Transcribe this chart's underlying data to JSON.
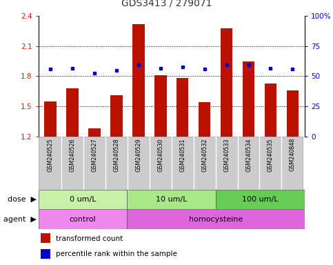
{
  "title": "GDS3413 / 279071",
  "categories": [
    "GSM240525",
    "GSM240526",
    "GSM240527",
    "GSM240528",
    "GSM240529",
    "GSM240530",
    "GSM240531",
    "GSM240532",
    "GSM240533",
    "GSM240534",
    "GSM240535",
    "GSM240848"
  ],
  "bar_values": [
    1.55,
    1.68,
    1.28,
    1.61,
    2.32,
    1.81,
    1.78,
    1.54,
    2.28,
    1.95,
    1.73,
    1.66
  ],
  "scatter_values": [
    1.87,
    1.88,
    1.83,
    1.86,
    1.91,
    1.88,
    1.89,
    1.87,
    1.91,
    1.91,
    1.88,
    1.87
  ],
  "bar_color": "#bb1100",
  "scatter_color": "#0000cc",
  "ylim_left": [
    1.2,
    2.4
  ],
  "ylim_right": [
    0,
    100
  ],
  "yticks_left": [
    1.2,
    1.5,
    1.8,
    2.1,
    2.4
  ],
  "yticks_right": [
    0,
    25,
    50,
    75,
    100
  ],
  "ytick_labels_right": [
    "0",
    "25",
    "50",
    "75",
    "100%"
  ],
  "hlines": [
    1.5,
    1.8,
    2.1
  ],
  "dose_groups": [
    {
      "label": "0 um/L",
      "start": 0,
      "end": 4,
      "color": "#c8f0a8"
    },
    {
      "label": "10 um/L",
      "start": 4,
      "end": 8,
      "color": "#a8e888"
    },
    {
      "label": "100 um/L",
      "start": 8,
      "end": 12,
      "color": "#66cc55"
    }
  ],
  "agent_groups": [
    {
      "label": "control",
      "start": 0,
      "end": 4,
      "color": "#ee88ee"
    },
    {
      "label": "homocysteine",
      "start": 4,
      "end": 12,
      "color": "#dd66dd"
    }
  ],
  "dose_label": "dose",
  "agent_label": "agent",
  "legend_bar_label": "transformed count",
  "legend_scatter_label": "percentile rank within the sample",
  "title_color": "#333333",
  "left_tick_color": "#cc2200",
  "right_tick_color": "#0000cc",
  "label_box_color": "#cccccc",
  "label_box_edge_color": "#999999"
}
